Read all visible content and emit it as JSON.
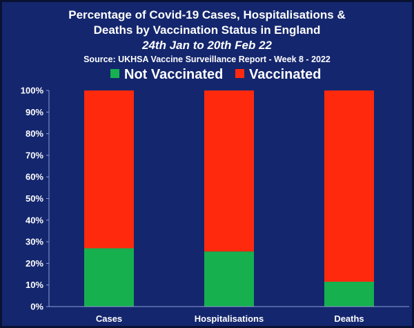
{
  "chart_data": {
    "type": "bar",
    "stacked": true,
    "title_lines": [
      "Percentage of Covid-19 Cases, Hospitalisations &",
      "Deaths by Vaccination Status in England"
    ],
    "subtitle": "24th Jan to 20th Feb 22",
    "source": "Source: UKHSA Vaccine Surveillance Report - Week 8 - 2022",
    "categories": [
      "Cases",
      "Hospitalisations",
      "Deaths"
    ],
    "series": [
      {
        "name": "Not Vaccinated",
        "color": "#16b04f",
        "values": [
          27,
          25.5,
          11.5
        ]
      },
      {
        "name": "Vaccinated",
        "color": "#ff2a0e",
        "values": [
          73,
          74.5,
          88.5
        ]
      }
    ],
    "ylim": [
      0,
      100
    ],
    "y_ticks": [
      "0%",
      "10%",
      "20%",
      "30%",
      "40%",
      "50%",
      "60%",
      "70%",
      "80%",
      "90%",
      "100%"
    ],
    "grid": false,
    "legend_position": "top-center"
  }
}
